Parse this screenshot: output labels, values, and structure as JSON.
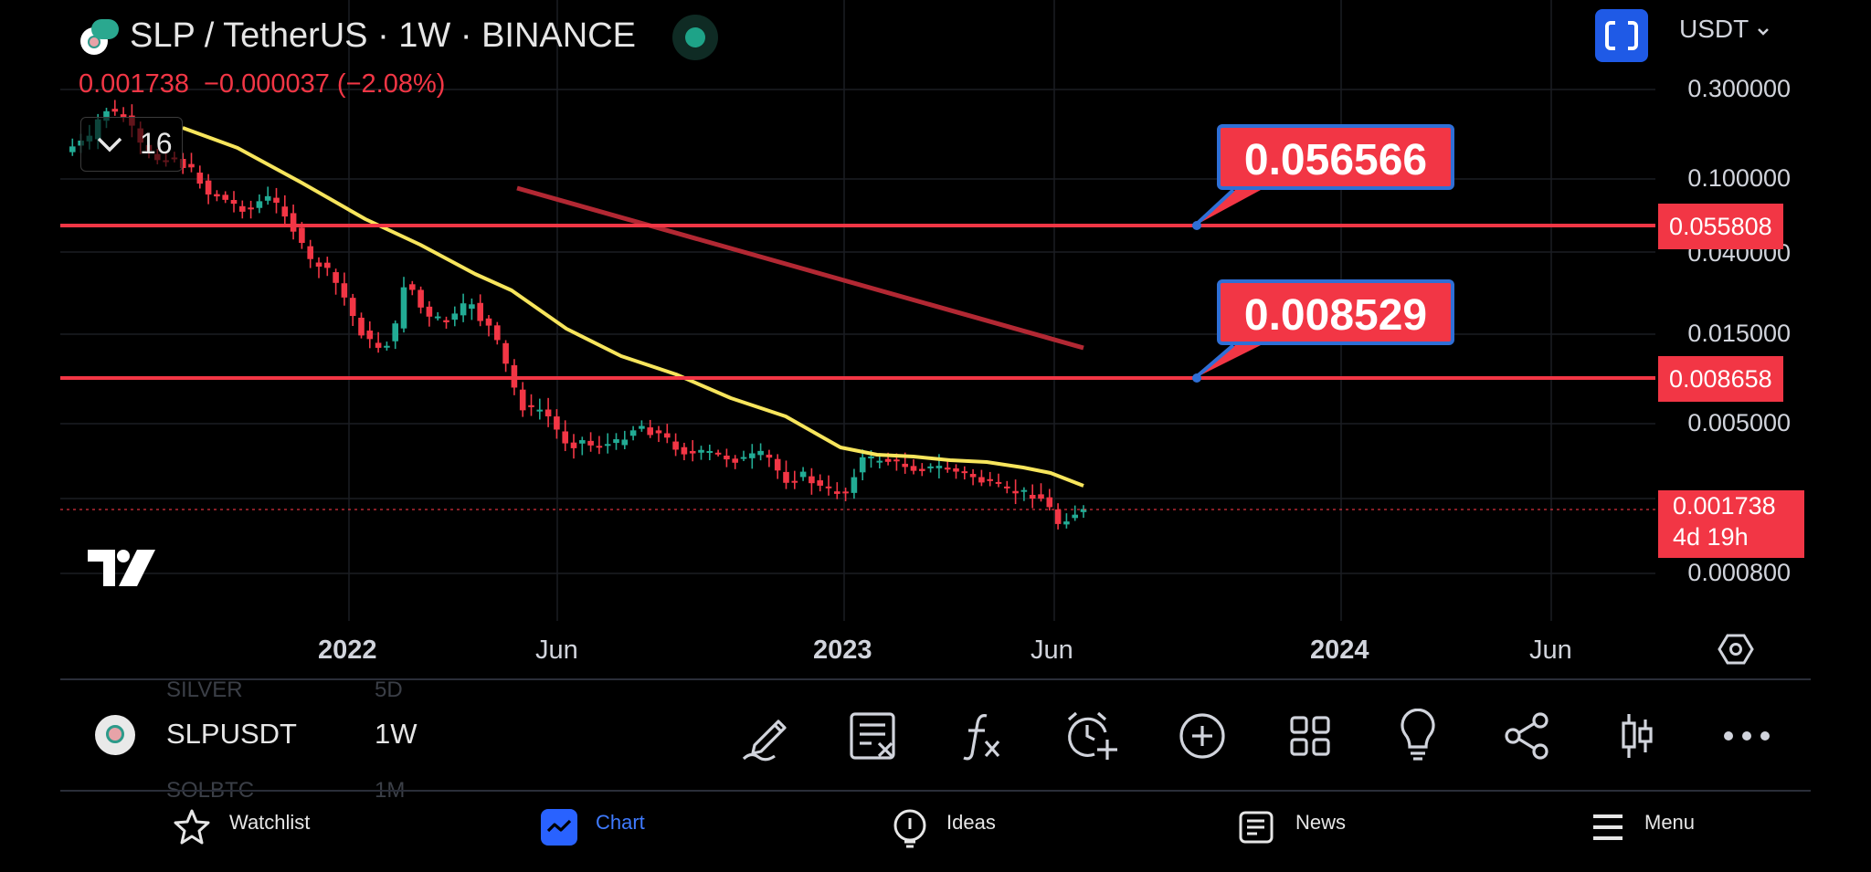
{
  "header": {
    "title": "SLP / TetherUS · 1W · BINANCE",
    "last_price": "0.001738",
    "change": "−0.000037 (−2.08%)",
    "indicator_count": "16",
    "currency": "USDT"
  },
  "price_axis": {
    "ticks": [
      "0.300000",
      "0.100000",
      "0.040000",
      "0.015000",
      "0.005000",
      "0.000800"
    ],
    "tag_upper": "0.055808",
    "tag_lower": "0.008658",
    "tag_current_price": "0.001738",
    "tag_current_countdown": "4d 19h"
  },
  "callouts": {
    "upper": "0.056566",
    "lower": "0.008529"
  },
  "time_axis": {
    "ticks": [
      "2022",
      "Jun",
      "2023",
      "Jun",
      "2024",
      "Jun"
    ]
  },
  "colors": {
    "bull": "#22ab94",
    "bear": "#f23645",
    "ma": "#f7e55c",
    "trendline": "#b22833",
    "hline": "#f23645",
    "accent": "#2962ff"
  },
  "symbol_bar": {
    "ghost_above_name": "SILVER",
    "ghost_above_interval": "5D",
    "symbol": "SLPUSDT",
    "interval": "1W",
    "ghost_below_name": "SOLBTC",
    "ghost_below_interval": "1M"
  },
  "toolbar": {
    "icons": [
      "pencil-icon",
      "clear-drawings-icon",
      "function-icon",
      "add-alert-icon",
      "add-icon",
      "layout-grid-icon",
      "ideas-bulb-icon",
      "share-icon",
      "chart-type-icon",
      "more-icon"
    ]
  },
  "bottom_nav": {
    "watchlist": "Watchlist",
    "chart": "Chart",
    "ideas": "Ideas",
    "news": "News",
    "menu": "Menu"
  }
}
